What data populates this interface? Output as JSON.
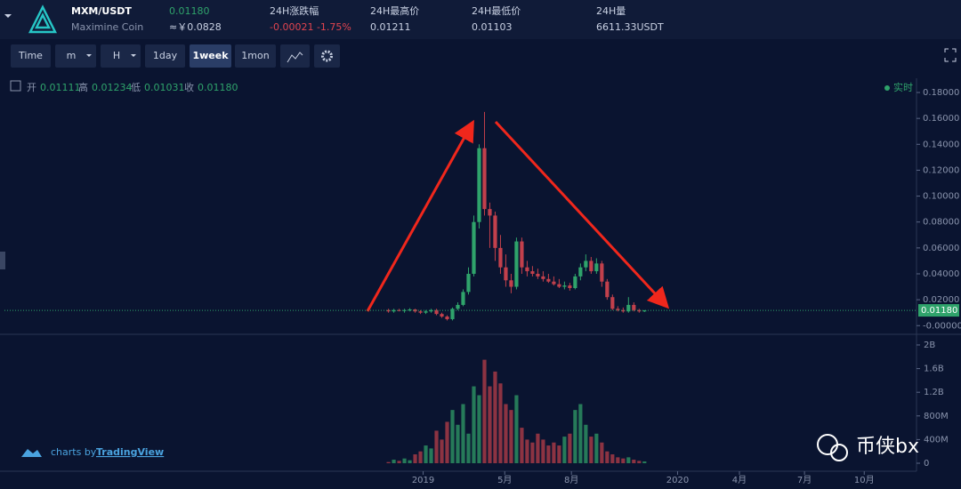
{
  "header": {
    "pair": "MXM/USDT",
    "coin": "Maximine Coin",
    "price": "0.01180",
    "price_cny": "≈￥0.0828",
    "stats": [
      {
        "label": "24H涨跌幅",
        "value": "-0.00021 -1.75%"
      },
      {
        "label": "24H最高价",
        "value": "0.01211"
      },
      {
        "label": "24H最低价",
        "value": "0.01103"
      },
      {
        "label": "24H量",
        "value": "6611.33USDT"
      }
    ]
  },
  "toolbar": [
    "Time",
    "m",
    "H",
    "1day",
    "1week",
    "1mon"
  ],
  "ohlc_legend": [
    {
      "label": "开",
      "value": "0.01111"
    },
    {
      "label": "高",
      "value": "0.01234"
    },
    {
      "label": "低",
      "value": "0.01031"
    },
    {
      "label": "收",
      "value": "0.01180"
    }
  ],
  "realtime": "实时",
  "footer": {
    "prefix": "charts by",
    "brand": "TradingView"
  },
  "watermark": "币侠bx",
  "chart_data": {
    "type": "candlestick",
    "x": [
      0,
      1,
      2,
      3,
      4,
      5,
      6,
      7,
      8,
      9,
      10,
      11,
      12,
      13,
      14,
      15,
      16,
      17,
      18,
      19,
      20,
      21,
      22,
      23,
      24,
      25,
      26,
      27,
      28,
      29,
      30,
      31,
      32,
      33,
      34,
      35,
      36,
      37,
      38,
      39,
      40,
      41,
      42,
      43,
      44,
      45,
      46,
      47,
      48
    ],
    "open": [
      0.012,
      0.011,
      0.012,
      0.0115,
      0.012,
      0.0125,
      0.011,
      0.01,
      0.011,
      0.012,
      0.009,
      0.007,
      0.005,
      0.013,
      0.016,
      0.026,
      0.04,
      0.08,
      0.137,
      0.09,
      0.085,
      0.06,
      0.045,
      0.035,
      0.03,
      0.065,
      0.045,
      0.042,
      0.04,
      0.038,
      0.036,
      0.034,
      0.032,
      0.03,
      0.031,
      0.029,
      0.038,
      0.045,
      0.05,
      0.042,
      0.048,
      0.034,
      0.022,
      0.013,
      0.012,
      0.011,
      0.016,
      0.012,
      0.011
    ],
    "high": [
      0.013,
      0.013,
      0.013,
      0.013,
      0.0135,
      0.013,
      0.012,
      0.012,
      0.013,
      0.013,
      0.01,
      0.008,
      0.014,
      0.018,
      0.028,
      0.045,
      0.085,
      0.14,
      0.165,
      0.095,
      0.088,
      0.07,
      0.055,
      0.04,
      0.068,
      0.068,
      0.05,
      0.046,
      0.044,
      0.042,
      0.04,
      0.038,
      0.036,
      0.034,
      0.033,
      0.04,
      0.048,
      0.055,
      0.053,
      0.052,
      0.05,
      0.036,
      0.024,
      0.015,
      0.014,
      0.022,
      0.018,
      0.013,
      0.012
    ],
    "low": [
      0.01,
      0.01,
      0.011,
      0.01,
      0.011,
      0.01,
      0.009,
      0.009,
      0.01,
      0.008,
      0.006,
      0.004,
      0.004,
      0.012,
      0.015,
      0.024,
      0.038,
      0.075,
      0.085,
      0.06,
      0.05,
      0.04,
      0.03,
      0.025,
      0.028,
      0.04,
      0.038,
      0.038,
      0.036,
      0.034,
      0.033,
      0.031,
      0.029,
      0.028,
      0.027,
      0.028,
      0.035,
      0.042,
      0.04,
      0.04,
      0.03,
      0.02,
      0.012,
      0.011,
      0.01,
      0.01,
      0.011,
      0.01,
      0.0105
    ],
    "close": [
      0.011,
      0.012,
      0.0115,
      0.012,
      0.0125,
      0.011,
      0.01,
      0.011,
      0.012,
      0.009,
      0.007,
      0.005,
      0.013,
      0.016,
      0.026,
      0.04,
      0.08,
      0.137,
      0.09,
      0.085,
      0.06,
      0.045,
      0.035,
      0.03,
      0.065,
      0.045,
      0.042,
      0.04,
      0.038,
      0.036,
      0.034,
      0.032,
      0.03,
      0.031,
      0.029,
      0.038,
      0.045,
      0.05,
      0.042,
      0.048,
      0.034,
      0.022,
      0.013,
      0.012,
      0.011,
      0.016,
      0.012,
      0.011,
      0.0118
    ],
    "up_color": "#2fa36b",
    "down_color": "#c2404c",
    "xlim": [
      -72,
      99
    ],
    "xticks": [
      {
        "value": 6.5,
        "label": "2019"
      },
      {
        "value": 21.8,
        "label": "5月"
      },
      {
        "value": 34.3,
        "label": "8月"
      },
      {
        "value": 54.2,
        "label": "2020"
      },
      {
        "value": 65.8,
        "label": "4月"
      },
      {
        "value": 78,
        "label": "7月"
      },
      {
        "value": 89.2,
        "label": "10月"
      }
    ],
    "ylim": [
      -0.006,
      0.191
    ],
    "yticks": [
      {
        "value": 0.18,
        "label": "0.18000"
      },
      {
        "value": 0.16,
        "label": "0.16000"
      },
      {
        "value": 0.14,
        "label": "0.14000"
      },
      {
        "value": 0.12,
        "label": "0.12000"
      },
      {
        "value": 0.1,
        "label": "0.10000"
      },
      {
        "value": 0.08,
        "label": "0.08000"
      },
      {
        "value": 0.06,
        "label": "0.06000"
      },
      {
        "value": 0.04,
        "label": "0.04000"
      },
      {
        "value": 0.02,
        "label": "0.02000"
      },
      {
        "value": 0,
        "label": "-0.00000"
      }
    ],
    "current_price": {
      "value": 0.0118,
      "label": "0.01180"
    },
    "volume": {
      "values": [
        20000000,
        60000000,
        40000000,
        80000000,
        50000000,
        150000000,
        200000000,
        300000000,
        250000000,
        550000000,
        400000000,
        700000000,
        900000000,
        650000000,
        1000000000,
        500000000,
        1300000000,
        1150000000,
        1750000000,
        1300000000,
        1550000000,
        1350000000,
        1000000000,
        900000000,
        1150000000,
        600000000,
        400000000,
        350000000,
        500000000,
        400000000,
        300000000,
        350000000,
        300000000,
        450000000,
        500000000,
        900000000,
        1000000000,
        650000000,
        450000000,
        500000000,
        350000000,
        200000000,
        150000000,
        100000000,
        80000000,
        100000000,
        60000000,
        40000000,
        30000000
      ],
      "up_color": "#267a59",
      "down_color": "#8c3342",
      "ylim": [
        0,
        2120000000
      ],
      "yticks": [
        {
          "value": 2000000000,
          "label": "2B"
        },
        {
          "value": 1600000000,
          "label": "1.6B"
        },
        {
          "value": 1200000000,
          "label": "1.2B"
        },
        {
          "value": 800000000,
          "label": "800M"
        },
        {
          "value": 400000000,
          "label": "400M"
        },
        0
      ]
    }
  }
}
